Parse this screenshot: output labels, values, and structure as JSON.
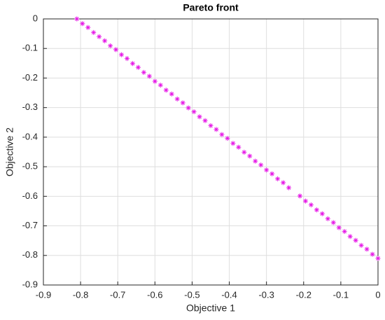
{
  "chart_data": {
    "type": "scatter",
    "title": "Pareto front",
    "xlabel": "Objective 1",
    "ylabel": "Objective 2",
    "color": "#e619e6",
    "grid": true,
    "xlim": [
      -0.9,
      0
    ],
    "ylim": [
      -0.9,
      0
    ],
    "xticks": [
      -0.9,
      -0.8,
      -0.7,
      -0.6,
      -0.5,
      -0.4,
      -0.3,
      -0.2,
      -0.1,
      0
    ],
    "yticks": [
      -0.9,
      -0.8,
      -0.7,
      -0.6,
      -0.5,
      -0.4,
      -0.3,
      -0.2,
      -0.1,
      0
    ],
    "x": [
      -0.81,
      -0.795,
      -0.78,
      -0.765,
      -0.75,
      -0.735,
      -0.72,
      -0.705,
      -0.69,
      -0.675,
      -0.66,
      -0.645,
      -0.63,
      -0.615,
      -0.6,
      -0.585,
      -0.57,
      -0.555,
      -0.54,
      -0.525,
      -0.51,
      -0.495,
      -0.48,
      -0.465,
      -0.45,
      -0.435,
      -0.42,
      -0.405,
      -0.39,
      -0.375,
      -0.36,
      -0.345,
      -0.33,
      -0.315,
      -0.3,
      -0.285,
      -0.27,
      -0.255,
      -0.24,
      -0.21,
      -0.195,
      -0.18,
      -0.165,
      -0.15,
      -0.135,
      -0.12,
      -0.105,
      -0.09,
      -0.075,
      -0.06,
      -0.045,
      -0.03,
      -0.015,
      0
    ],
    "y": [
      0,
      -0.016,
      -0.029,
      -0.046,
      -0.06,
      -0.074,
      -0.091,
      -0.104,
      -0.121,
      -0.134,
      -0.151,
      -0.164,
      -0.181,
      -0.194,
      -0.211,
      -0.224,
      -0.241,
      -0.254,
      -0.271,
      -0.284,
      -0.301,
      -0.314,
      -0.331,
      -0.344,
      -0.361,
      -0.374,
      -0.391,
      -0.404,
      -0.421,
      -0.434,
      -0.451,
      -0.464,
      -0.481,
      -0.494,
      -0.511,
      -0.524,
      -0.541,
      -0.554,
      -0.571,
      -0.599,
      -0.616,
      -0.629,
      -0.646,
      -0.659,
      -0.676,
      -0.689,
      -0.706,
      -0.719,
      -0.736,
      -0.749,
      -0.766,
      -0.779,
      -0.796,
      -0.81
    ]
  }
}
